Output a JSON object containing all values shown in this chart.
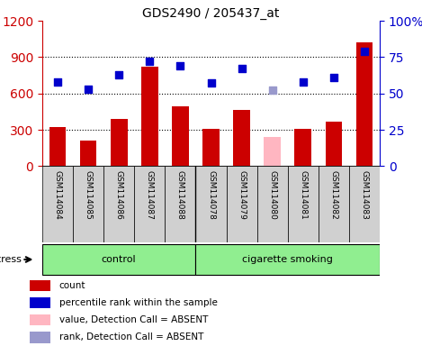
{
  "title": "GDS2490 / 205437_at",
  "samples": [
    "GSM114084",
    "GSM114085",
    "GSM114086",
    "GSM114087",
    "GSM114088",
    "GSM114078",
    "GSM114079",
    "GSM114080",
    "GSM114081",
    "GSM114082",
    "GSM114083"
  ],
  "counts": [
    320,
    210,
    390,
    820,
    490,
    305,
    460,
    0,
    310,
    370,
    1020
  ],
  "counts_absent": [
    0,
    0,
    0,
    0,
    0,
    0,
    0,
    240,
    0,
    0,
    0
  ],
  "ranks": [
    58,
    53,
    63,
    72,
    69,
    57,
    67,
    0,
    58,
    61,
    79
  ],
  "ranks_absent": [
    0,
    0,
    0,
    0,
    0,
    0,
    0,
    52,
    0,
    0,
    0
  ],
  "count_color": "#cc0000",
  "count_absent_color": "#ffb6c1",
  "rank_color": "#0000cc",
  "rank_absent_color": "#9999cc",
  "control_count": 5,
  "smoking_count": 6,
  "ylim_left": [
    0,
    1200
  ],
  "yticks_left": [
    0,
    300,
    600,
    900,
    1200
  ],
  "ylim_right": [
    0,
    100
  ],
  "yticks_right": [
    0,
    25,
    50,
    75,
    100
  ],
  "ytick_labels_right": [
    "0",
    "25",
    "50",
    "75",
    "100%"
  ],
  "stress_label": "stress",
  "control_label": "control",
  "smoking_label": "cigarette smoking",
  "legend_items": [
    {
      "label": "count",
      "color": "#cc0000"
    },
    {
      "label": "percentile rank within the sample",
      "color": "#0000cc"
    },
    {
      "label": "value, Detection Call = ABSENT",
      "color": "#ffb6c1"
    },
    {
      "label": "rank, Detection Call = ABSENT",
      "color": "#9999cc"
    }
  ],
  "bg_color": "#ffffff",
  "tick_color_left": "#cc0000",
  "tick_color_right": "#0000cc",
  "bar_width": 0.55,
  "figsize": [
    4.69,
    3.84
  ],
  "dpi": 100
}
